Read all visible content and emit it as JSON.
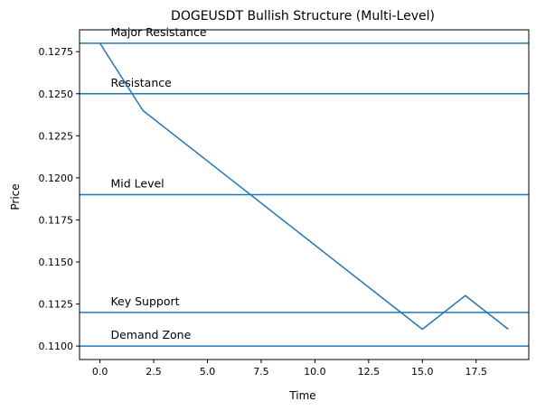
{
  "chart_data": {
    "type": "line",
    "title": "DOGEUSDT Bullish Structure (Multi-Level)",
    "xlabel": "Time",
    "ylabel": "Price",
    "xlim": [
      -0.95,
      19.95
    ],
    "ylim": [
      0.1092,
      0.1288
    ],
    "xticks": [
      0,
      2.5,
      5,
      7.5,
      10,
      12.5,
      15,
      17.5
    ],
    "xtick_labels": [
      "0.0",
      "2.5",
      "5.0",
      "7.5",
      "10.0",
      "12.5",
      "15.0",
      "17.5"
    ],
    "yticks": [
      0.11,
      0.1125,
      0.115,
      0.1175,
      0.12,
      0.1225,
      0.125,
      0.1275
    ],
    "ytick_labels": [
      "0.1100",
      "0.1125",
      "0.1150",
      "0.1175",
      "0.1200",
      "0.1225",
      "0.1250",
      "0.1275"
    ],
    "grid": false,
    "series": [
      {
        "points": [
          [
            0,
            0.128
          ],
          [
            2,
            0.124
          ],
          [
            15,
            0.111
          ],
          [
            17,
            0.113
          ],
          [
            19,
            0.111
          ]
        ],
        "color": "#1f77b4"
      }
    ],
    "levels": [
      {
        "label": "Major Resistance",
        "value": 0.128
      },
      {
        "label": "Resistance",
        "value": 0.125
      },
      {
        "label": "Mid Level",
        "value": 0.119
      },
      {
        "label": "Key Support",
        "value": 0.112
      },
      {
        "label": "Demand Zone",
        "value": 0.11
      }
    ],
    "level_label_x": 0.5,
    "level_color": "#1f77b4"
  }
}
